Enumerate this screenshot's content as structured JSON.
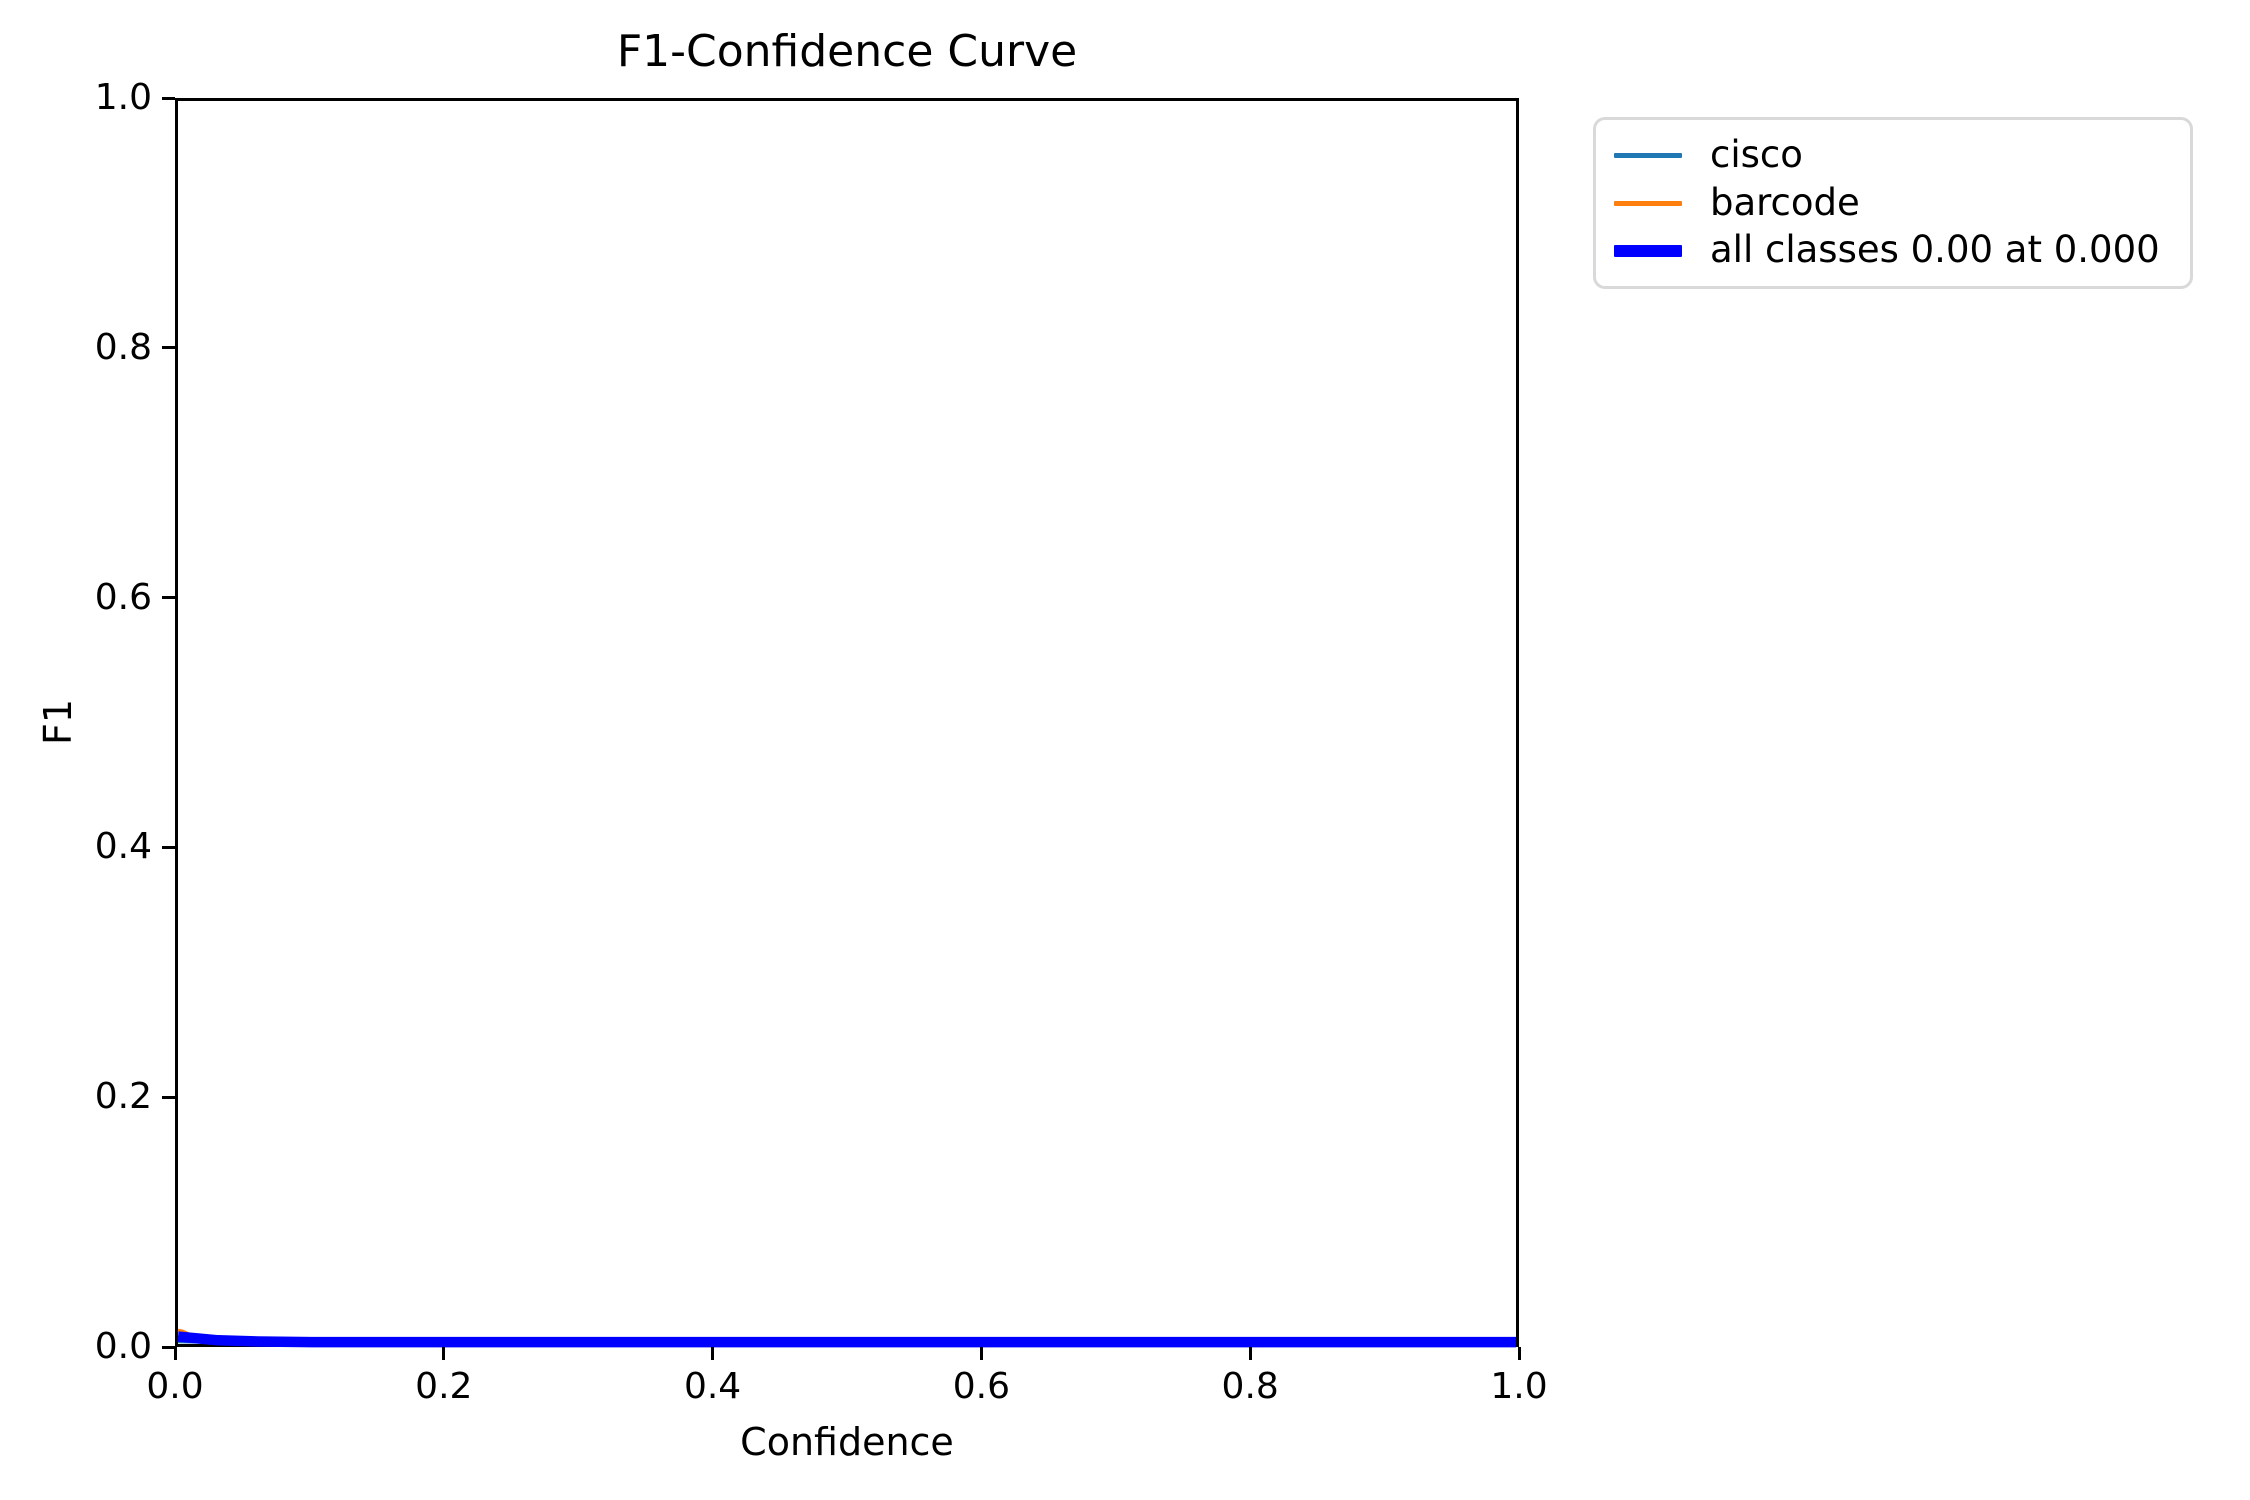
{
  "chart_data": {
    "type": "line",
    "title": "F1-Confidence Curve",
    "xlabel": "Confidence",
    "ylabel": "F1",
    "xlim": [
      0,
      1
    ],
    "ylim": [
      0,
      1
    ],
    "xticks": [
      "0.0",
      "0.2",
      "0.4",
      "0.6",
      "0.8",
      "1.0"
    ],
    "yticks": [
      "0.0",
      "0.2",
      "0.4",
      "0.6",
      "0.8",
      "1.0"
    ],
    "grid": false,
    "legend_position": "outside-upper-right",
    "series": [
      {
        "name": "cisco",
        "color": "#1f77b4",
        "weight": "thin",
        "x": [
          0,
          0.05,
          0.1,
          0.2,
          0.4,
          0.6,
          0.8,
          1.0
        ],
        "y": [
          0.002,
          0.001,
          0.001,
          0.001,
          0.001,
          0.001,
          0.001,
          0.001
        ]
      },
      {
        "name": "barcode",
        "color": "#ff7f0e",
        "weight": "thin",
        "x": [
          0,
          0.004,
          0.01,
          0.02,
          0.05,
          0.1,
          0.5,
          1.0
        ],
        "y": [
          0.011,
          0.01,
          0.007,
          0.004,
          0.002,
          0.001,
          0.001,
          0.001
        ]
      },
      {
        "name": "all classes 0.00 at 0.000",
        "color": "#0000ff",
        "weight": "thick",
        "x": [
          0,
          0.01,
          0.03,
          0.06,
          0.1,
          0.3,
          0.6,
          1.0
        ],
        "y": [
          0.006,
          0.005,
          0.003,
          0.002,
          0.0015,
          0.0015,
          0.0015,
          0.0015
        ]
      }
    ],
    "all_classes_max_f1": "0.00",
    "all_classes_max_f1_confidence": "0.000"
  },
  "colors": {
    "axes_edge": "#000000",
    "legend_border": "#d9d9d9",
    "background": "#ffffff"
  }
}
